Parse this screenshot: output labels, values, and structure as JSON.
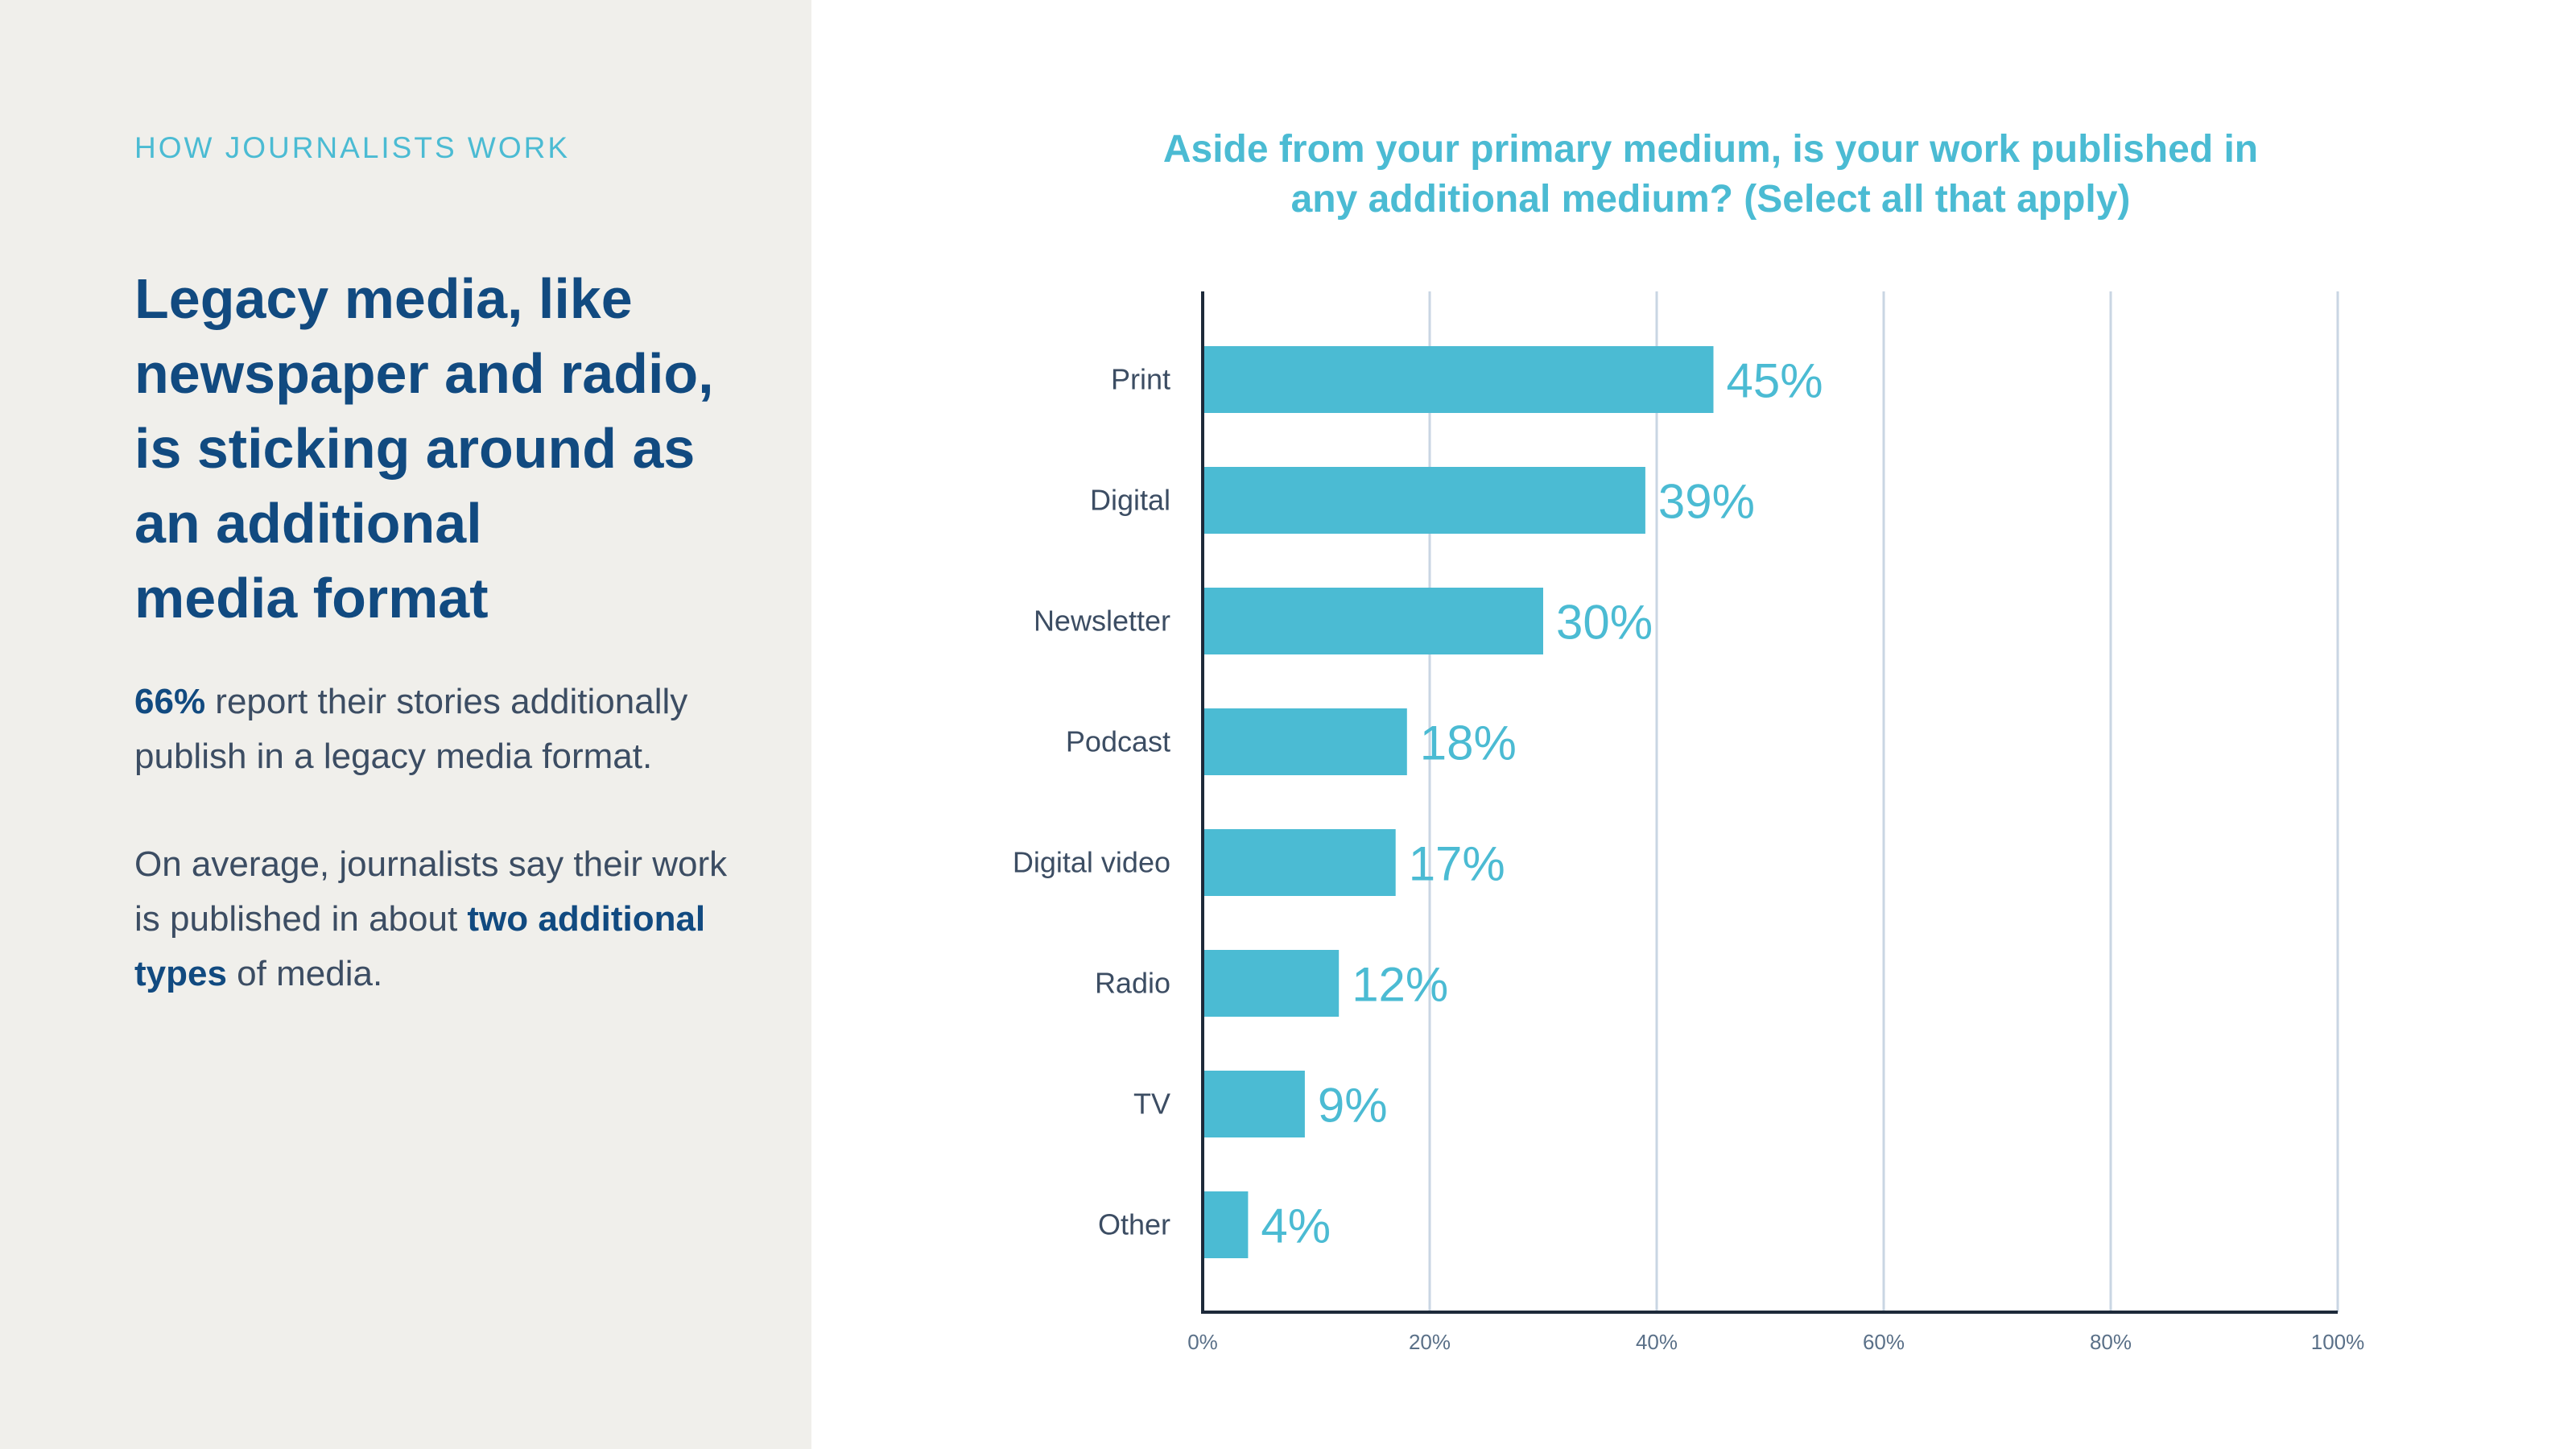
{
  "left_panel": {
    "eyebrow": "HOW JOURNALISTS WORK",
    "headline_lines": [
      "Legacy media, like",
      "newspaper and radio,",
      "is sticking around as",
      "an additional",
      "media format"
    ],
    "para1": {
      "bold": "66%",
      "text_line1": " report their stories additionally",
      "text_line2": "publish in a legacy media format."
    },
    "para2": {
      "text_line1": "On average, journalists say their work",
      "text_line2_prefix": "is published in about ",
      "bold_line2": "two additional",
      "bold_line3": "types",
      "suffix_line3": " of media."
    }
  },
  "colors": {
    "bar": "#4bbbd3",
    "axis": "#1d2a3a",
    "grid": "#c9d6e3",
    "panel": "#f0efeb",
    "headline": "#114a80"
  },
  "chart_data": {
    "type": "bar",
    "orientation": "horizontal",
    "title_lines": [
      "Aside from your primary medium, is your work published in",
      "any additional medium? (Select all that apply)"
    ],
    "categories": [
      "Print",
      "Digital",
      "Newsletter",
      "Podcast",
      "Digital video",
      "Radio",
      "TV",
      "Other"
    ],
    "values": [
      45,
      39,
      30,
      18,
      17,
      12,
      9,
      4
    ],
    "value_labels": [
      "45%",
      "39%",
      "30%",
      "18%",
      "17%",
      "12%",
      "9%",
      "4%"
    ],
    "xlim": [
      0,
      100
    ],
    "xticks": [
      0,
      20,
      40,
      60,
      80,
      100
    ],
    "xtick_labels": [
      "0%",
      "20%",
      "40%",
      "60%",
      "80%",
      "100%"
    ],
    "grid": true
  }
}
